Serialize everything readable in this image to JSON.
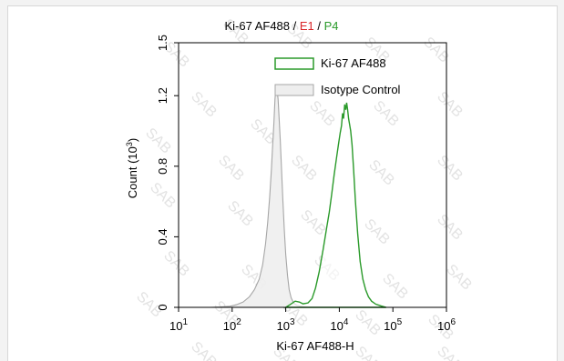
{
  "chart_data": {
    "type": "area",
    "title_parts": [
      {
        "text": "Ki-67 AF488 / ",
        "color": "#000000"
      },
      {
        "text": "E1",
        "color": "#d9262a"
      },
      {
        "text": " / ",
        "color": "#000000"
      },
      {
        "text": "P4",
        "color": "#2a9a2a"
      }
    ],
    "xlabel": "Ki-67 AF488-H",
    "ylabel_prefix": "Count (10",
    "ylabel_sup": "3",
    "ylabel_suffix": ")",
    "xscale": "log",
    "xlim": [
      10,
      1000000
    ],
    "ylim": [
      0,
      1500
    ],
    "xticks": [
      {
        "base": "10",
        "exp": "1",
        "value": 10
      },
      {
        "base": "10",
        "exp": "2",
        "value": 100
      },
      {
        "base": "10",
        "exp": "3",
        "value": 1000
      },
      {
        "base": "10",
        "exp": "4",
        "value": 10000
      },
      {
        "base": "10",
        "exp": "5",
        "value": 100000
      },
      {
        "base": "10",
        "exp": "6",
        "value": 1000000
      }
    ],
    "yticks": [
      {
        "label": "0",
        "value": 0
      },
      {
        "label": "0.4",
        "value": 400
      },
      {
        "label": "0.8",
        "value": 800
      },
      {
        "label": "1.2",
        "value": 1200
      },
      {
        "label": "1.5",
        "value": 1500
      }
    ],
    "legend_position": "top-right",
    "grid": false,
    "series": [
      {
        "name": "Ki-67 AF488",
        "stroke": "#2a9a2a",
        "fill": "#ffffff",
        "points": [
          [
            1000,
            0
          ],
          [
            1200,
            15
          ],
          [
            1500,
            35
          ],
          [
            1800,
            30
          ],
          [
            2100,
            20
          ],
          [
            2600,
            25
          ],
          [
            3100,
            50
          ],
          [
            3600,
            110
          ],
          [
            4200,
            200
          ],
          [
            5000,
            330
          ],
          [
            5800,
            450
          ],
          [
            6500,
            540
          ],
          [
            7200,
            640
          ],
          [
            8000,
            750
          ],
          [
            8800,
            840
          ],
          [
            9600,
            920
          ],
          [
            10400,
            990
          ],
          [
            11000,
            1030
          ],
          [
            11500,
            1100
          ],
          [
            12000,
            1070
          ],
          [
            12600,
            1150
          ],
          [
            13200,
            1120
          ],
          [
            13700,
            1160
          ],
          [
            14300,
            1120
          ],
          [
            14900,
            1070
          ],
          [
            15500,
            1040
          ],
          [
            16300,
            1000
          ],
          [
            17300,
            920
          ],
          [
            18500,
            780
          ],
          [
            20000,
            600
          ],
          [
            22000,
            420
          ],
          [
            24500,
            260
          ],
          [
            27500,
            160
          ],
          [
            31000,
            100
          ],
          [
            35000,
            60
          ],
          [
            40000,
            35
          ],
          [
            48000,
            18
          ],
          [
            60000,
            8
          ],
          [
            75000,
            0
          ]
        ]
      },
      {
        "name": "Isotype Control",
        "stroke": "#a6a6a6",
        "fill": "#eeeeee",
        "points": [
          [
            40,
            0
          ],
          [
            60,
            2
          ],
          [
            90,
            6
          ],
          [
            120,
            15
          ],
          [
            160,
            30
          ],
          [
            210,
            60
          ],
          [
            260,
            100
          ],
          [
            320,
            160
          ],
          [
            370,
            240
          ],
          [
            420,
            360
          ],
          [
            460,
            480
          ],
          [
            500,
            620
          ],
          [
            540,
            780
          ],
          [
            570,
            920
          ],
          [
            600,
            1040
          ],
          [
            630,
            1180
          ],
          [
            660,
            1260
          ],
          [
            690,
            1230
          ],
          [
            720,
            1180
          ],
          [
            750,
            1080
          ],
          [
            790,
            950
          ],
          [
            830,
            800
          ],
          [
            880,
            620
          ],
          [
            940,
            440
          ],
          [
            1000,
            300
          ],
          [
            1080,
            180
          ],
          [
            1160,
            100
          ],
          [
            1260,
            55
          ],
          [
            1400,
            25
          ],
          [
            1600,
            12
          ],
          [
            2000,
            4
          ],
          [
            2600,
            0
          ]
        ]
      }
    ],
    "watermark": "SAB"
  }
}
